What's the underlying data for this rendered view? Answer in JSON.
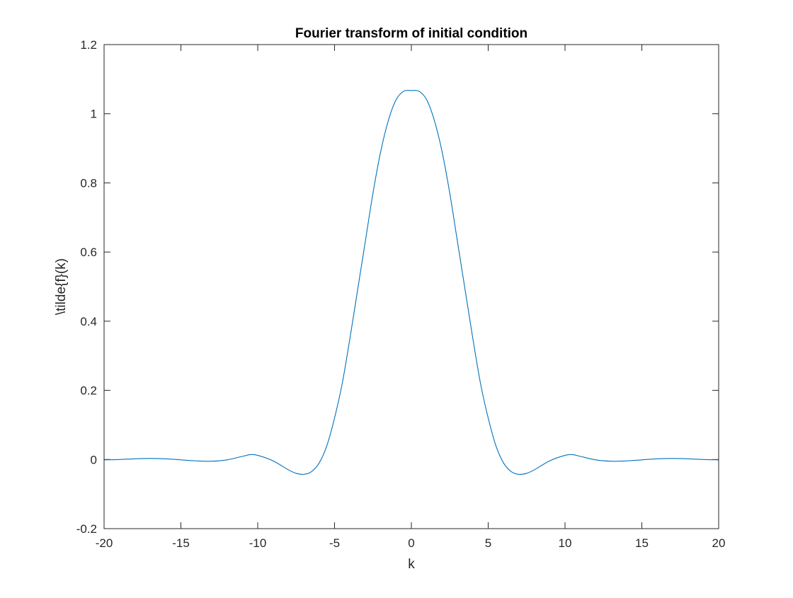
{
  "chart_data": {
    "type": "line",
    "title": "Fourier transform of initial condition",
    "xlabel": "k",
    "ylabel": "\\tilde{f}(k)",
    "xlim": [
      -20,
      20
    ],
    "ylim": [
      -0.2,
      1.2
    ],
    "xticks": [
      -20,
      -15,
      -10,
      -5,
      0,
      5,
      10,
      15,
      20
    ],
    "xtick_labels": [
      "-20",
      "-15",
      "-10",
      "-5",
      "0",
      "5",
      "10",
      "15",
      "20"
    ],
    "yticks": [
      -0.2,
      0,
      0.2,
      0.4,
      0.6,
      0.8,
      1,
      1.2
    ],
    "ytick_labels": [
      "-0.2",
      "0",
      "0.2",
      "0.4",
      "0.6",
      "0.8",
      "1",
      "1.2"
    ],
    "grid": false,
    "box": true,
    "series": [
      {
        "color": "#0072BD",
        "x": [
          -20,
          -19,
          -18,
          -17,
          -16,
          -15,
          -14,
          -13,
          -12,
          -11,
          -10.5,
          -10,
          -9,
          -8,
          -7.5,
          -7,
          -6.5,
          -6,
          -5.5,
          -5,
          -4.5,
          -4,
          -3.5,
          -3,
          -2.5,
          -2,
          -1.5,
          -1,
          -0.5,
          0,
          0.5,
          1,
          1.5,
          2,
          2.5,
          3,
          3.5,
          4,
          4.5,
          5,
          5.5,
          6,
          6.5,
          7,
          7.5,
          8,
          9,
          10,
          10.5,
          11,
          12,
          13,
          14,
          15,
          16,
          17,
          18,
          19,
          20
        ],
        "y": [
          -0.001,
          0.0,
          0.002,
          0.003,
          0.002,
          -0.001,
          -0.004,
          -0.005,
          -0.001,
          0.009,
          0.014,
          0.012,
          -0.004,
          -0.03,
          -0.04,
          -0.043,
          -0.035,
          -0.01,
          0.04,
          0.12,
          0.22,
          0.35,
          0.49,
          0.63,
          0.77,
          0.89,
          0.98,
          1.04,
          1.065,
          1.067,
          1.065,
          1.04,
          0.98,
          0.89,
          0.77,
          0.63,
          0.49,
          0.35,
          0.22,
          0.12,
          0.04,
          -0.01,
          -0.035,
          -0.043,
          -0.04,
          -0.03,
          -0.004,
          0.012,
          0.014,
          0.009,
          -0.001,
          -0.005,
          -0.004,
          -0.001,
          0.002,
          0.003,
          0.002,
          0.0,
          -0.001
        ]
      }
    ]
  }
}
